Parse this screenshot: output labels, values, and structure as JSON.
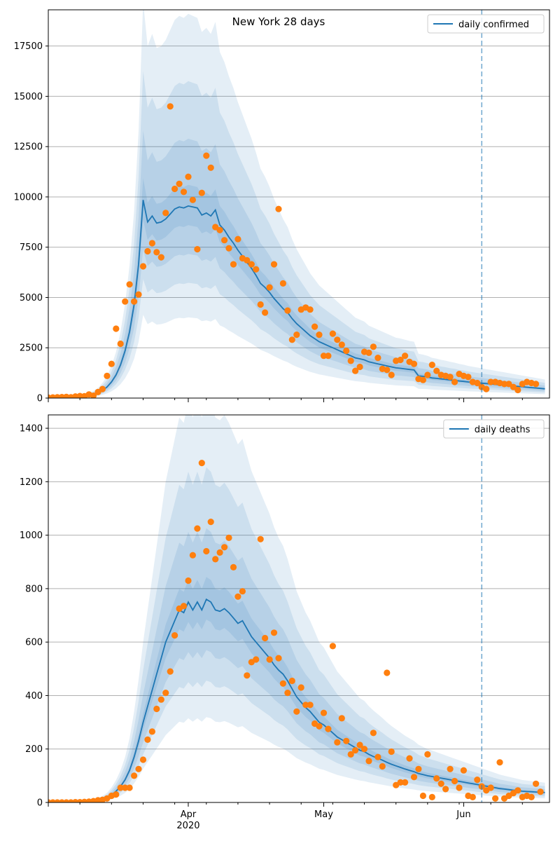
{
  "figure_title": "New York 28 days",
  "chart_data": [
    {
      "type": "line",
      "title": "New York 28 days",
      "legend_label": "daily confirmed",
      "legend_position": "top-right",
      "x_type": "date",
      "xlim": [
        "2020-03-01",
        "2020-06-20"
      ],
      "ylim": [
        0,
        19300
      ],
      "yticks": [
        0,
        2500,
        5000,
        7500,
        10000,
        12500,
        15000,
        17500
      ],
      "grid": "horizontal",
      "forecast_start": "2020-06-05",
      "series_color": "#1f77b4",
      "observed_color": "#ff7f0e",
      "dates_start": "2020-03-01",
      "observed_start": "2020-03-01",
      "observed": [
        20,
        30,
        40,
        50,
        60,
        40,
        80,
        100,
        90,
        180,
        120,
        300,
        450,
        1100,
        1700,
        3450,
        2700,
        4800,
        5650,
        4800,
        5150,
        6550,
        7300,
        7700,
        7250,
        7000,
        9200,
        14500,
        10400,
        10650,
        10250,
        11000,
        9850,
        7400,
        10200,
        12050,
        11450,
        8500,
        8350,
        7850,
        7450,
        6650,
        7900,
        6950,
        6850,
        6650,
        6400,
        4650,
        4250,
        5500,
        6650,
        9400,
        5700,
        4350,
        2900,
        3150,
        4400,
        4500,
        4400,
        3550,
        3150,
        2100,
        2100,
        3200,
        2900,
        2650,
        2350,
        1850,
        1350,
        1550,
        2300,
        2250,
        2550,
        2000,
        1450,
        1400,
        1150,
        1850,
        1900,
        2100,
        1800,
        1700,
        950,
        900,
        1150,
        1650,
        1350,
        1150,
        1100,
        1050,
        800,
        1200,
        1100,
        1050,
        800,
        750,
        550,
        450,
        800,
        800,
        750,
        700,
        700,
        550,
        400,
        700,
        800,
        750,
        700
      ],
      "median": [
        10,
        15,
        20,
        25,
        30,
        35,
        50,
        70,
        90,
        130,
        180,
        250,
        380,
        550,
        800,
        1150,
        1650,
        2350,
        3300,
        4650,
        6650,
        9850,
        8750,
        9050,
        8700,
        8750,
        8900,
        9150,
        9400,
        9500,
        9450,
        9550,
        9500,
        9450,
        9100,
        9200,
        9050,
        9350,
        8600,
        8350,
        8000,
        7700,
        7350,
        7050,
        6750,
        6450,
        6100,
        5700,
        5500,
        5250,
        4950,
        4700,
        4450,
        4250,
        3950,
        3700,
        3500,
        3300,
        3100,
        2950,
        2800,
        2700,
        2600,
        2500,
        2400,
        2300,
        2200,
        2100,
        2000,
        1950,
        1900,
        1800,
        1750,
        1700,
        1650,
        1600,
        1550,
        1500,
        1480,
        1450,
        1420,
        1400,
        1100,
        1080,
        1050,
        1000,
        980,
        950,
        930,
        900,
        880,
        850,
        830,
        800,
        780,
        760,
        740,
        720,
        700,
        680,
        660,
        640,
        620,
        600,
        580,
        560,
        540,
        520,
        500,
        480,
        460
      ],
      "band_ratios": [
        [
          0.9,
          1.11
        ],
        [
          0.75,
          1.35
        ],
        [
          0.6,
          1.65
        ],
        [
          0.42,
          2.0
        ]
      ]
    },
    {
      "type": "line",
      "title": "",
      "legend_label": "daily deaths",
      "legend_position": "top-right",
      "x_type": "date",
      "xlim": [
        "2020-03-01",
        "2020-06-20"
      ],
      "ylim": [
        0,
        1450
      ],
      "yticks": [
        0,
        200,
        400,
        600,
        800,
        1000,
        1200,
        1400
      ],
      "xtick_labels": [
        "Apr\n2020",
        "May",
        "Jun"
      ],
      "grid": "horizontal",
      "forecast_start": "2020-06-05",
      "series_color": "#1f77b4",
      "observed_color": "#ff7f0e",
      "dates_start": "2020-03-01",
      "observed_start": "2020-03-01",
      "observed": [
        0,
        0,
        0,
        0,
        0,
        0,
        1,
        1,
        2,
        3,
        5,
        8,
        10,
        15,
        25,
        30,
        55,
        55,
        55,
        100,
        125,
        160,
        235,
        265,
        350,
        385,
        410,
        490,
        625,
        725,
        735,
        830,
        925,
        1025,
        1270,
        940,
        1050,
        910,
        935,
        955,
        990,
        880,
        770,
        790,
        475,
        525,
        535,
        985,
        615,
        535,
        635,
        540,
        445,
        410,
        455,
        340,
        430,
        365,
        365,
        295,
        285,
        335,
        275,
        585,
        225,
        315,
        230,
        180,
        195,
        215,
        200,
        155,
        260,
        170,
        135,
        485,
        190,
        65,
        75,
        75,
        165,
        95,
        125,
        25,
        180,
        20,
        90,
        70,
        50,
        125,
        80,
        55,
        120,
        25,
        20,
        85,
        60,
        45,
        55,
        15,
        150,
        15,
        25,
        35,
        45,
        20,
        25,
        20,
        70,
        40
      ],
      "median": [
        0,
        0,
        0,
        0,
        0,
        0,
        1,
        1,
        2,
        3,
        5,
        8,
        12,
        18,
        28,
        42,
        60,
        85,
        120,
        170,
        230,
        300,
        360,
        420,
        480,
        540,
        600,
        640,
        680,
        720,
        710,
        750,
        720,
        750,
        720,
        760,
        750,
        720,
        715,
        725,
        710,
        690,
        670,
        680,
        650,
        620,
        600,
        580,
        560,
        540,
        515,
        495,
        480,
        455,
        425,
        395,
        375,
        355,
        340,
        320,
        300,
        290,
        275,
        260,
        245,
        235,
        225,
        215,
        205,
        195,
        190,
        180,
        172,
        165,
        158,
        150,
        143,
        137,
        131,
        125,
        120,
        115,
        108,
        104,
        100,
        97,
        94,
        91,
        88,
        85,
        82,
        79,
        76,
        73,
        70,
        67,
        64,
        61,
        58,
        55,
        52,
        50,
        48,
        46,
        44,
        42,
        41,
        40,
        39,
        38,
        37
      ],
      "band_ratios": [
        [
          0.9,
          1.11
        ],
        [
          0.75,
          1.35
        ],
        [
          0.6,
          1.65
        ],
        [
          0.42,
          2.0
        ]
      ]
    }
  ]
}
